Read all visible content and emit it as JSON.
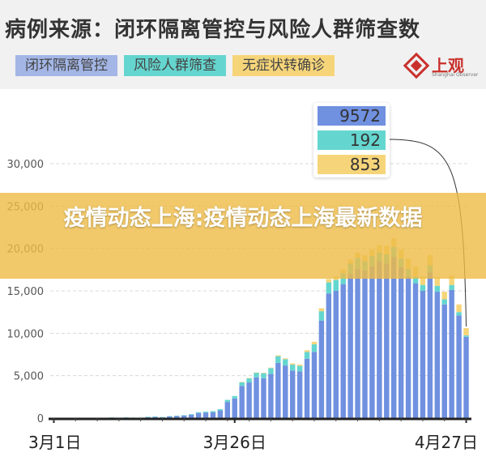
{
  "header": {
    "title": "病例来源：闭环隔离管控与风险人群筛查数"
  },
  "logo": {
    "name": "上观",
    "subtitle": "Shanghai Observer",
    "brand_color": "#c9302c"
  },
  "overlay": {
    "text": "疫情动态上海:疫情动态上海最新数据"
  },
  "chart_data": {
    "type": "bar",
    "stacked": true,
    "title": "病例来源：闭环隔离管控与风险人群筛查数",
    "xlabel": "",
    "ylabel": "",
    "ylim": [
      0,
      30000
    ],
    "yticks": [
      "0",
      "5,000",
      "10,000",
      "15,000",
      "20,000",
      "25,000",
      "30,000"
    ],
    "xticks": [
      "3月1日",
      "3月26日",
      "4月27日"
    ],
    "legend_position": "top",
    "grid": true,
    "colors": {
      "closed_loop": "#7090e0",
      "risk_screening": "#65d6cf",
      "asymptomatic_converted": "#f6d57a"
    },
    "categories": [
      "3/1",
      "3/2",
      "3/3",
      "3/4",
      "3/5",
      "3/6",
      "3/7",
      "3/8",
      "3/9",
      "3/10",
      "3/11",
      "3/12",
      "3/13",
      "3/14",
      "3/15",
      "3/16",
      "3/17",
      "3/18",
      "3/19",
      "3/20",
      "3/21",
      "3/22",
      "3/23",
      "3/24",
      "3/25",
      "3/26",
      "3/27",
      "3/28",
      "3/29",
      "3/30",
      "3/31",
      "4/1",
      "4/2",
      "4/3",
      "4/4",
      "4/5",
      "4/6",
      "4/7",
      "4/8",
      "4/9",
      "4/10",
      "4/11",
      "4/12",
      "4/13",
      "4/14",
      "4/15",
      "4/16",
      "4/17",
      "4/18",
      "4/19",
      "4/20",
      "4/21",
      "4/22",
      "4/23",
      "4/24",
      "4/25",
      "4/26",
      "4/27"
    ],
    "series": [
      {
        "name": "闭环隔离管控",
        "values": [
          2,
          5,
          5,
          8,
          8,
          10,
          20,
          40,
          60,
          50,
          70,
          50,
          50,
          130,
          150,
          100,
          200,
          240,
          300,
          400,
          600,
          650,
          700,
          900,
          1900,
          2300,
          3800,
          4200,
          4800,
          4700,
          5200,
          6500,
          6200,
          5600,
          5500,
          7000,
          7800,
          11500,
          14700,
          15000,
          15800,
          17000,
          17600,
          17400,
          17900,
          18500,
          18200,
          19000,
          17800,
          16700,
          15900,
          15000,
          17200,
          14900,
          13400,
          15100,
          12100,
          9572
        ]
      },
      {
        "name": "风险人群筛查",
        "values": [
          0,
          1,
          1,
          2,
          2,
          2,
          3,
          5,
          8,
          6,
          10,
          8,
          8,
          20,
          25,
          20,
          30,
          40,
          50,
          70,
          100,
          110,
          120,
          150,
          250,
          300,
          450,
          500,
          550,
          600,
          700,
          800,
          750,
          700,
          650,
          800,
          900,
          1100,
          1300,
          1300,
          1300,
          1200,
          1300,
          1100,
          1200,
          1000,
          1100,
          1200,
          1000,
          900,
          800,
          700,
          800,
          700,
          600,
          600,
          400,
          192
        ]
      },
      {
        "name": "无症状转确诊",
        "values": [
          0,
          0,
          0,
          0,
          0,
          0,
          0,
          0,
          0,
          0,
          0,
          0,
          0,
          0,
          0,
          0,
          0,
          0,
          0,
          0,
          0,
          0,
          0,
          0,
          0,
          0,
          10,
          20,
          30,
          40,
          50,
          100,
          100,
          150,
          150,
          200,
          300,
          350,
          400,
          400,
          450,
          500,
          600,
          700,
          800,
          900,
          1000,
          1000,
          1100,
          1200,
          1200,
          1000,
          1200,
          1000,
          900,
          1100,
          900,
          853
        ]
      }
    ],
    "tooltip": {
      "values": [
        "9572",
        "192",
        "853"
      ]
    }
  }
}
